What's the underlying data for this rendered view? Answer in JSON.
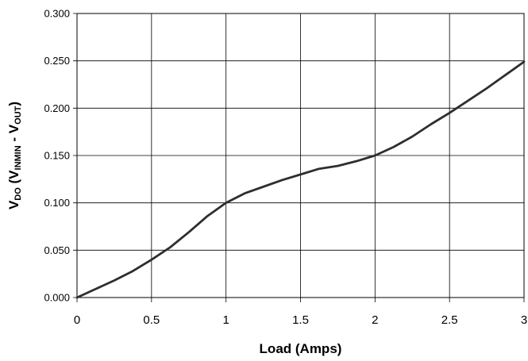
{
  "chart_data": {
    "type": "line",
    "xlabel": "Load (Amps)",
    "ylabel": {
      "parts": [
        {
          "text": "V",
          "sub": false
        },
        {
          "text": "DO",
          "sub": true
        },
        {
          "text": " (V",
          "sub": false
        },
        {
          "text": "INMIN",
          "sub": true
        },
        {
          "text": " - V",
          "sub": false
        },
        {
          "text": "OUT",
          "sub": true
        },
        {
          "text": ")",
          "sub": false
        }
      ]
    },
    "xlim": [
      0,
      3
    ],
    "ylim": [
      0,
      0.3
    ],
    "grid": true,
    "x_ticks": [
      {
        "value": 0,
        "label": "0"
      },
      {
        "value": 0.5,
        "label": "0.5"
      },
      {
        "value": 1,
        "label": "1"
      },
      {
        "value": 1.5,
        "label": "1.5"
      },
      {
        "value": 2,
        "label": "2"
      },
      {
        "value": 2.5,
        "label": "2.5"
      },
      {
        "value": 3,
        "label": "3"
      }
    ],
    "y_ticks": [
      {
        "value": 0,
        "label": "0.000"
      },
      {
        "value": 0.05,
        "label": "0.050"
      },
      {
        "value": 0.1,
        "label": "0.100"
      },
      {
        "value": 0.15,
        "label": "0.150"
      },
      {
        "value": 0.2,
        "label": "0.200"
      },
      {
        "value": 0.25,
        "label": "0.250"
      },
      {
        "value": 0.3,
        "label": "0.300"
      }
    ],
    "series": [
      {
        "color": "#2e2e2e",
        "x": [
          0,
          0.125,
          0.25,
          0.375,
          0.5,
          0.625,
          0.75,
          0.875,
          1.0,
          1.125,
          1.25,
          1.375,
          1.5,
          1.625,
          1.75,
          1.875,
          2.0,
          2.125,
          2.25,
          2.375,
          2.5,
          2.625,
          2.75,
          2.875,
          3.0
        ],
        "y": [
          0.0,
          0.009,
          0.018,
          0.028,
          0.04,
          0.053,
          0.069,
          0.086,
          0.1,
          0.11,
          0.117,
          0.124,
          0.13,
          0.136,
          0.139,
          0.144,
          0.15,
          0.159,
          0.17,
          0.183,
          0.195,
          0.208,
          0.221,
          0.235,
          0.249
        ]
      }
    ]
  }
}
